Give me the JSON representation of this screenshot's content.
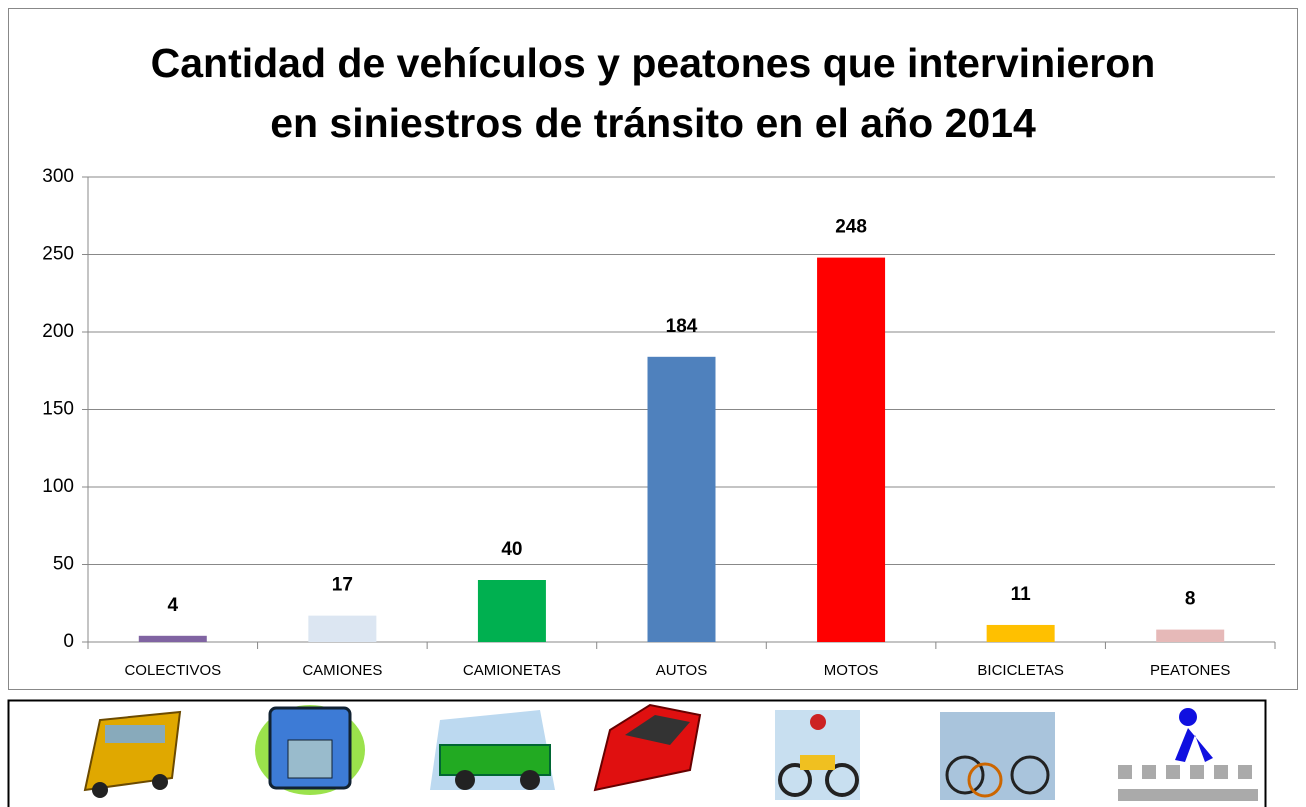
{
  "chart_data": {
    "type": "bar",
    "title": [
      "Cantidad de vehículos y peatones que intervinieron",
      "en siniestros de tránsito en el año 2014"
    ],
    "categories": [
      "COLECTIVOS",
      "CAMIONES",
      "CAMIONETAS",
      "AUTOS",
      "MOTOS",
      "BICICLETAS",
      "PEATONES"
    ],
    "values": [
      4,
      17,
      40,
      184,
      248,
      11,
      8
    ],
    "colors": [
      "#8064a2",
      "#dce6f2",
      "#00b050",
      "#4f81bd",
      "#ff0000",
      "#ffc000",
      "#e6b9b8"
    ],
    "ylim": [
      0,
      300
    ],
    "yticks": [
      0,
      50,
      100,
      150,
      200,
      250,
      300
    ],
    "grid": true
  }
}
